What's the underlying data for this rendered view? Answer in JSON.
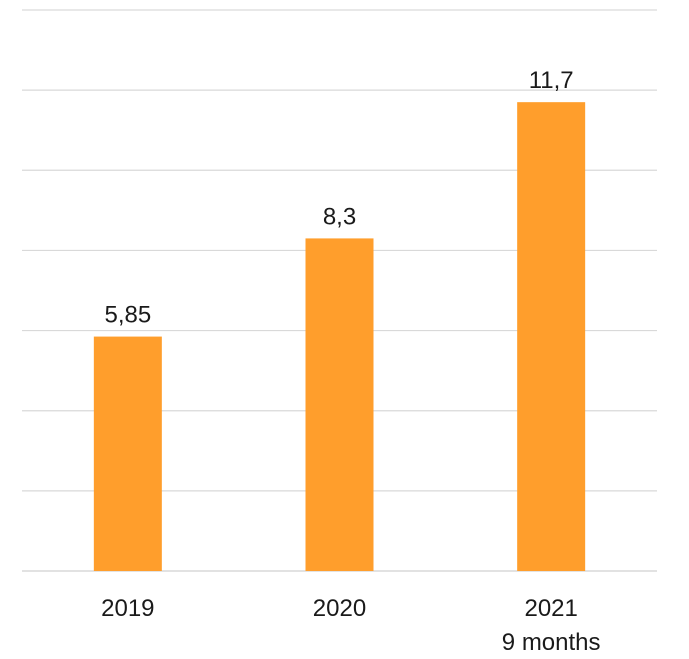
{
  "chart_data": {
    "type": "bar",
    "categories": [
      "2019",
      "2020",
      "2021"
    ],
    "category_sublabels": [
      "",
      "",
      "9 months"
    ],
    "values": [
      5.85,
      8.3,
      11.7
    ],
    "data_labels": [
      "5,85",
      "8,3",
      "11,7"
    ],
    "ylim": [
      0,
      14
    ],
    "grid": true,
    "legend": "none",
    "title": "",
    "xlabel": "",
    "ylabel": "",
    "colors": {
      "bar": "#FF9E2C",
      "grid": "#d9d9d9",
      "text": "#1a1a1a"
    }
  }
}
